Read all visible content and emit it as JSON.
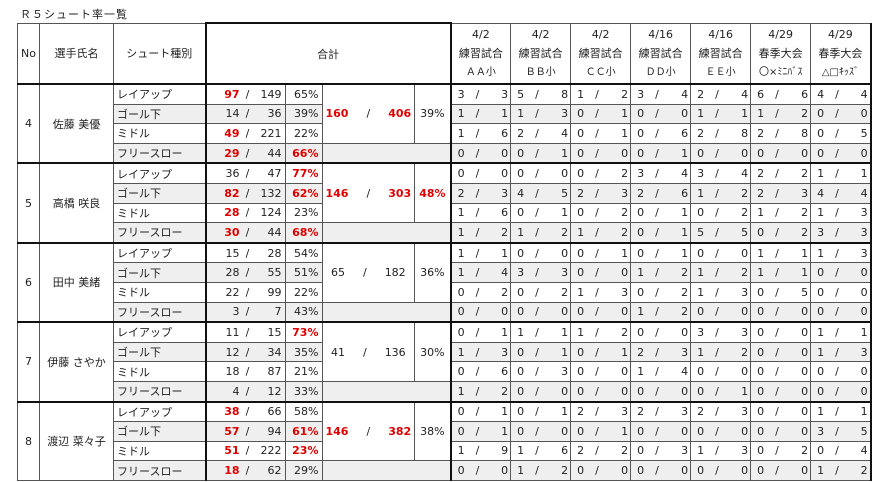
{
  "title": "Ｒ５シュート率一覧",
  "headers": {
    "no": "No",
    "name": "選手氏名",
    "type": "シュート種別",
    "total": "合計"
  },
  "games": [
    {
      "date": "4/2",
      "kind": "練習試合",
      "opp": "ＡＡ小"
    },
    {
      "date": "4/2",
      "kind": "練習試合",
      "opp": "ＢＢ小"
    },
    {
      "date": "4/2",
      "kind": "練習試合",
      "opp": "ＣＣ小"
    },
    {
      "date": "4/16",
      "kind": "練習試合",
      "opp": "ＤＤ小"
    },
    {
      "date": "4/16",
      "kind": "練習試合",
      "opp": "ＥＥ小"
    },
    {
      "date": "4/29",
      "kind": "春季大会",
      "opp": "〇×ﾐﾆﾊﾞｽ"
    },
    {
      "date": "4/29",
      "kind": "春季大会",
      "opp": "△□ｷｯｽﾞ"
    }
  ],
  "slash": "/",
  "highlight_color": "#e00000",
  "players": [
    {
      "no": "4",
      "name": "佐藤 美優",
      "total": {
        "made": "160",
        "att": "406",
        "pct": "39%",
        "made_red": true,
        "att_red": true,
        "pct_red": false
      },
      "rows": [
        {
          "type": "レイアップ",
          "made": "97",
          "att": "149",
          "pct": "65%",
          "made_red": true,
          "pct_red": false,
          "games": [
            [
              "3",
              "3"
            ],
            [
              "5",
              "8"
            ],
            [
              "1",
              "2"
            ],
            [
              "3",
              "4"
            ],
            [
              "2",
              "4"
            ],
            [
              "6",
              "6"
            ],
            [
              "4",
              "4"
            ]
          ]
        },
        {
          "type": "ゴール下",
          "made": "14",
          "att": "36",
          "pct": "39%",
          "made_red": false,
          "pct_red": false,
          "games": [
            [
              "1",
              "1"
            ],
            [
              "1",
              "3"
            ],
            [
              "0",
              "1"
            ],
            [
              "0",
              "0"
            ],
            [
              "1",
              "1"
            ],
            [
              "1",
              "2"
            ],
            [
              "0",
              "0"
            ]
          ]
        },
        {
          "type": "ミドル",
          "made": "49",
          "att": "221",
          "pct": "22%",
          "made_red": true,
          "pct_red": false,
          "games": [
            [
              "1",
              "6"
            ],
            [
              "2",
              "4"
            ],
            [
              "0",
              "1"
            ],
            [
              "0",
              "6"
            ],
            [
              "2",
              "8"
            ],
            [
              "2",
              "8"
            ],
            [
              "0",
              "5"
            ]
          ]
        },
        {
          "type": "フリースロー",
          "made": "29",
          "att": "44",
          "pct": "66%",
          "made_red": true,
          "pct_red": true,
          "games": [
            [
              "0",
              "0"
            ],
            [
              "0",
              "1"
            ],
            [
              "0",
              "0"
            ],
            [
              "0",
              "1"
            ],
            [
              "0",
              "0"
            ],
            [
              "0",
              "0"
            ],
            [
              "0",
              "0"
            ]
          ]
        }
      ]
    },
    {
      "no": "5",
      "name": "高橋 咲良",
      "total": {
        "made": "146",
        "att": "303",
        "pct": "48%",
        "made_red": true,
        "att_red": true,
        "pct_red": true
      },
      "rows": [
        {
          "type": "レイアップ",
          "made": "36",
          "att": "47",
          "pct": "77%",
          "made_red": false,
          "pct_red": true,
          "games": [
            [
              "0",
              "0"
            ],
            [
              "0",
              "0"
            ],
            [
              "0",
              "2"
            ],
            [
              "3",
              "4"
            ],
            [
              "3",
              "4"
            ],
            [
              "2",
              "2"
            ],
            [
              "1",
              "1"
            ]
          ]
        },
        {
          "type": "ゴール下",
          "made": "82",
          "att": "132",
          "pct": "62%",
          "made_red": true,
          "pct_red": true,
          "games": [
            [
              "2",
              "3"
            ],
            [
              "4",
              "5"
            ],
            [
              "2",
              "3"
            ],
            [
              "2",
              "6"
            ],
            [
              "1",
              "2"
            ],
            [
              "2",
              "3"
            ],
            [
              "4",
              "4"
            ]
          ]
        },
        {
          "type": "ミドル",
          "made": "28",
          "att": "124",
          "pct": "23%",
          "made_red": true,
          "pct_red": false,
          "games": [
            [
              "1",
              "6"
            ],
            [
              "0",
              "1"
            ],
            [
              "0",
              "2"
            ],
            [
              "0",
              "1"
            ],
            [
              "0",
              "2"
            ],
            [
              "1",
              "2"
            ],
            [
              "1",
              "3"
            ]
          ]
        },
        {
          "type": "フリースロー",
          "made": "30",
          "att": "44",
          "pct": "68%",
          "made_red": true,
          "pct_red": true,
          "games": [
            [
              "1",
              "2"
            ],
            [
              "1",
              "2"
            ],
            [
              "1",
              "2"
            ],
            [
              "0",
              "1"
            ],
            [
              "5",
              "5"
            ],
            [
              "0",
              "2"
            ],
            [
              "3",
              "3"
            ]
          ]
        }
      ]
    },
    {
      "no": "6",
      "name": "田中 美緒",
      "total": {
        "made": "65",
        "att": "182",
        "pct": "36%",
        "made_red": false,
        "att_red": false,
        "pct_red": false
      },
      "rows": [
        {
          "type": "レイアップ",
          "made": "15",
          "att": "28",
          "pct": "54%",
          "made_red": false,
          "pct_red": false,
          "games": [
            [
              "1",
              "1"
            ],
            [
              "0",
              "0"
            ],
            [
              "0",
              "1"
            ],
            [
              "0",
              "1"
            ],
            [
              "0",
              "0"
            ],
            [
              "1",
              "1"
            ],
            [
              "1",
              "3"
            ]
          ]
        },
        {
          "type": "ゴール下",
          "made": "28",
          "att": "55",
          "pct": "51%",
          "made_red": false,
          "pct_red": false,
          "games": [
            [
              "1",
              "4"
            ],
            [
              "3",
              "3"
            ],
            [
              "0",
              "0"
            ],
            [
              "1",
              "2"
            ],
            [
              "1",
              "2"
            ],
            [
              "1",
              "1"
            ],
            [
              "0",
              "0"
            ]
          ]
        },
        {
          "type": "ミドル",
          "made": "22",
          "att": "99",
          "pct": "22%",
          "made_red": false,
          "pct_red": false,
          "games": [
            [
              "0",
              "2"
            ],
            [
              "0",
              "2"
            ],
            [
              "1",
              "3"
            ],
            [
              "0",
              "2"
            ],
            [
              "1",
              "3"
            ],
            [
              "0",
              "5"
            ],
            [
              "0",
              "0"
            ]
          ]
        },
        {
          "type": "フリースロー",
          "made": "3",
          "att": "7",
          "pct": "43%",
          "made_red": false,
          "pct_red": false,
          "games": [
            [
              "0",
              "0"
            ],
            [
              "0",
              "0"
            ],
            [
              "0",
              "0"
            ],
            [
              "1",
              "2"
            ],
            [
              "0",
              "0"
            ],
            [
              "0",
              "0"
            ],
            [
              "0",
              "0"
            ]
          ]
        }
      ]
    },
    {
      "no": "7",
      "name": "伊藤 さやか",
      "total": {
        "made": "41",
        "att": "136",
        "pct": "30%",
        "made_red": false,
        "att_red": false,
        "pct_red": false
      },
      "rows": [
        {
          "type": "レイアップ",
          "made": "11",
          "att": "15",
          "pct": "73%",
          "made_red": false,
          "pct_red": true,
          "games": [
            [
              "0",
              "1"
            ],
            [
              "1",
              "1"
            ],
            [
              "1",
              "2"
            ],
            [
              "0",
              "0"
            ],
            [
              "3",
              "3"
            ],
            [
              "0",
              "0"
            ],
            [
              "1",
              "1"
            ]
          ]
        },
        {
          "type": "ゴール下",
          "made": "12",
          "att": "34",
          "pct": "35%",
          "made_red": false,
          "pct_red": false,
          "games": [
            [
              "1",
              "3"
            ],
            [
              "0",
              "1"
            ],
            [
              "0",
              "1"
            ],
            [
              "2",
              "3"
            ],
            [
              "1",
              "2"
            ],
            [
              "0",
              "0"
            ],
            [
              "1",
              "3"
            ]
          ]
        },
        {
          "type": "ミドル",
          "made": "18",
          "att": "87",
          "pct": "21%",
          "made_red": false,
          "pct_red": false,
          "games": [
            [
              "0",
              "6"
            ],
            [
              "0",
              "3"
            ],
            [
              "0",
              "0"
            ],
            [
              "1",
              "4"
            ],
            [
              "0",
              "0"
            ],
            [
              "0",
              "0"
            ],
            [
              "0",
              "0"
            ]
          ]
        },
        {
          "type": "フリースロー",
          "made": "4",
          "att": "12",
          "pct": "33%",
          "made_red": false,
          "pct_red": false,
          "games": [
            [
              "1",
              "2"
            ],
            [
              "0",
              "0"
            ],
            [
              "0",
              "0"
            ],
            [
              "0",
              "0"
            ],
            [
              "0",
              "1"
            ],
            [
              "0",
              "0"
            ],
            [
              "0",
              "0"
            ]
          ]
        }
      ]
    },
    {
      "no": "8",
      "name": "渡辺 菜々子",
      "total": {
        "made": "146",
        "att": "382",
        "pct": "38%",
        "made_red": true,
        "att_red": true,
        "pct_red": false
      },
      "rows": [
        {
          "type": "レイアップ",
          "made": "38",
          "att": "66",
          "pct": "58%",
          "made_red": true,
          "pct_red": false,
          "games": [
            [
              "0",
              "1"
            ],
            [
              "0",
              "1"
            ],
            [
              "2",
              "3"
            ],
            [
              "2",
              "3"
            ],
            [
              "2",
              "3"
            ],
            [
              "0",
              "0"
            ],
            [
              "1",
              "1"
            ]
          ]
        },
        {
          "type": "ゴール下",
          "made": "57",
          "att": "94",
          "pct": "61%",
          "made_red": true,
          "pct_red": true,
          "games": [
            [
              "0",
              "1"
            ],
            [
              "0",
              "0"
            ],
            [
              "0",
              "1"
            ],
            [
              "0",
              "0"
            ],
            [
              "0",
              "0"
            ],
            [
              "0",
              "0"
            ],
            [
              "3",
              "5"
            ]
          ]
        },
        {
          "type": "ミドル",
          "made": "51",
          "att": "222",
          "pct": "23%",
          "made_red": true,
          "pct_red": true,
          "games": [
            [
              "1",
              "9"
            ],
            [
              "1",
              "6"
            ],
            [
              "2",
              "2"
            ],
            [
              "0",
              "3"
            ],
            [
              "1",
              "3"
            ],
            [
              "0",
              "2"
            ],
            [
              "0",
              "4"
            ]
          ]
        },
        {
          "type": "フリースロー",
          "made": "18",
          "att": "62",
          "pct": "29%",
          "made_red": true,
          "pct_red": false,
          "games": [
            [
              "0",
              "0"
            ],
            [
              "1",
              "2"
            ],
            [
              "0",
              "0"
            ],
            [
              "0",
              "0"
            ],
            [
              "0",
              "0"
            ],
            [
              "0",
              "0"
            ],
            [
              "1",
              "2"
            ]
          ]
        }
      ]
    }
  ]
}
